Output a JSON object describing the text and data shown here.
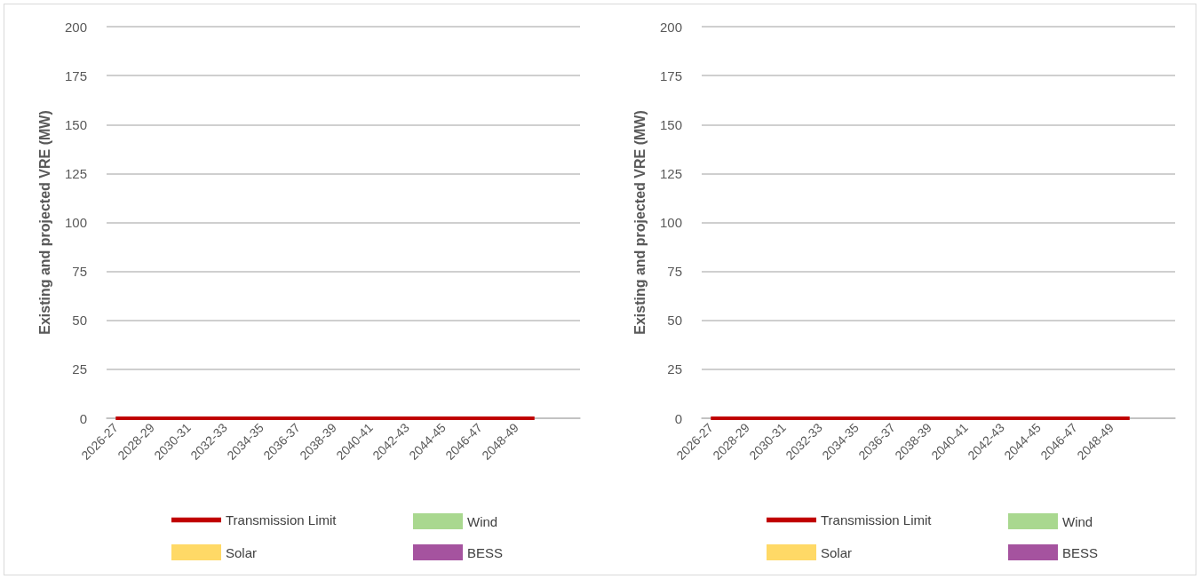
{
  "chart_data": [
    {
      "type": "bar",
      "ylabel": "Existing and projected VRE (MW)",
      "categories": [
        "2026-27",
        null,
        "2028-29",
        null,
        "2030-31",
        null,
        "2032-33",
        null,
        "2034-35",
        null,
        "2036-37",
        null,
        "2038-39",
        null,
        "2040-41",
        null,
        "2042-43",
        null,
        "2044-45",
        null,
        "2046-47",
        null,
        "2048-49",
        null,
        null,
        null
      ],
      "ylim": [
        0,
        200
      ],
      "yticks": [
        0,
        25,
        50,
        75,
        100,
        125,
        150,
        175,
        200
      ],
      "grid": "y",
      "legend": "bottom",
      "marker": "none",
      "series": [
        {
          "name": "Transmission Limit",
          "type": "line",
          "color": "#c00000",
          "values": [
            0,
            0,
            0,
            0,
            0,
            0,
            0,
            0,
            0,
            0,
            0,
            0,
            0,
            0,
            0,
            0,
            0,
            0,
            0,
            0,
            0,
            0,
            0,
            0,
            null,
            null
          ]
        },
        {
          "name": "Wind",
          "color": "#a9d88f",
          "values": [
            0,
            0,
            0,
            0,
            0,
            0,
            0,
            0,
            0,
            0,
            0,
            0,
            0,
            0,
            0,
            0,
            0,
            0,
            0,
            0,
            0,
            0,
            0,
            0,
            0,
            0
          ]
        },
        {
          "name": "Solar",
          "color": "#ffd966",
          "values": [
            0,
            0,
            0,
            0,
            0,
            0,
            0,
            0,
            0,
            0,
            0,
            0,
            0,
            0,
            0,
            0,
            0,
            0,
            0,
            0,
            0,
            0,
            0,
            0,
            0,
            0
          ]
        },
        {
          "name": "BESS",
          "color": "#a5539f",
          "values": [
            0,
            0,
            0,
            0,
            0,
            0,
            0,
            0,
            0,
            0,
            0,
            0,
            0,
            0,
            0,
            0,
            0,
            0,
            0,
            0,
            0,
            0,
            0,
            0,
            0,
            0
          ]
        }
      ]
    },
    {
      "type": "bar",
      "ylabel": "Existing and projected VRE (MW)",
      "categories": [
        "2026-27",
        null,
        "2028-29",
        null,
        "2030-31",
        null,
        "2032-33",
        null,
        "2034-35",
        null,
        "2036-37",
        null,
        "2038-39",
        null,
        "2040-41",
        null,
        "2042-43",
        null,
        "2044-45",
        null,
        "2046-47",
        null,
        "2048-49",
        null,
        null,
        null
      ],
      "ylim": [
        0,
        200
      ],
      "yticks": [
        0,
        25,
        50,
        75,
        100,
        125,
        150,
        175,
        200
      ],
      "grid": "y",
      "legend": "bottom",
      "marker": "none",
      "series": [
        {
          "name": "Transmission Limit",
          "type": "line",
          "color": "#c00000",
          "values": [
            0,
            0,
            0,
            0,
            0,
            0,
            0,
            0,
            0,
            0,
            0,
            0,
            0,
            0,
            0,
            0,
            0,
            0,
            0,
            0,
            0,
            0,
            0,
            0,
            null,
            null
          ]
        },
        {
          "name": "Wind",
          "color": "#a9d88f",
          "values": [
            0,
            0,
            0,
            0,
            0,
            0,
            0,
            0,
            0,
            0,
            0,
            0,
            0,
            0,
            0,
            0,
            0,
            0,
            0,
            0,
            0,
            0,
            0,
            0,
            0,
            0
          ]
        },
        {
          "name": "Solar",
          "color": "#ffd966",
          "values": [
            0,
            0,
            0,
            0,
            0,
            0,
            0,
            0,
            0,
            0,
            0,
            0,
            0,
            0,
            0,
            0,
            0,
            0,
            0,
            0,
            0,
            0,
            0,
            0,
            0,
            0
          ]
        },
        {
          "name": "BESS",
          "color": "#a5539f",
          "values": [
            0,
            0,
            0,
            0,
            0,
            0,
            0,
            0,
            0,
            0,
            0,
            0,
            0,
            0,
            0,
            0,
            0,
            0,
            0,
            0,
            0,
            0,
            0,
            0,
            0,
            0
          ]
        }
      ]
    }
  ]
}
